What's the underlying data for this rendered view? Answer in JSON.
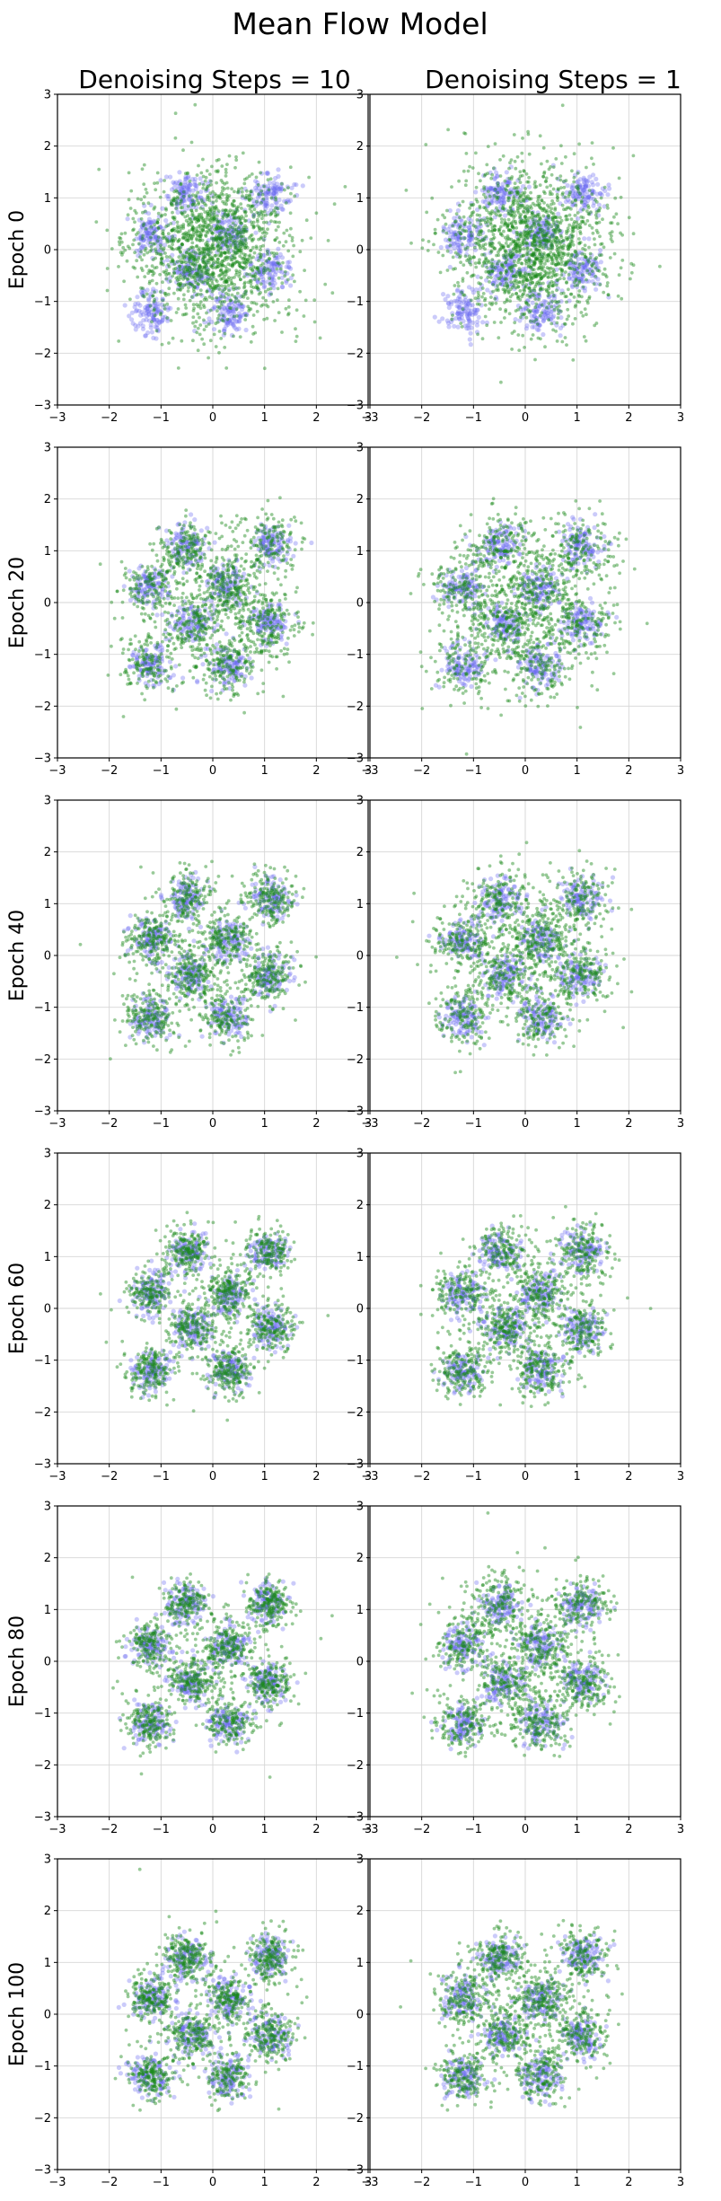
{
  "title": "Mean Flow Model",
  "columns": [
    "Denoising Steps = 10",
    "Denoising Steps = 1"
  ],
  "rows": [
    "Epoch 0",
    "Epoch 20",
    "Epoch 40",
    "Epoch 60",
    "Epoch 80",
    "Epoch 100"
  ],
  "colors": {
    "reference": "#6b6bf0",
    "generated": "#1a8a1a"
  },
  "chart_data": {
    "type": "scatter",
    "layout": "grid 6 rows x 2 columns",
    "xlim": [
      -3,
      3
    ],
    "ylim": [
      -3,
      3
    ],
    "xticks": [
      -3,
      -2,
      -1,
      0,
      1,
      2,
      3
    ],
    "yticks": [
      -3,
      -2,
      -1,
      0,
      1,
      2,
      3
    ],
    "xtick_labels": [
      "−3",
      "−2",
      "−1",
      "0",
      "1",
      "2",
      "3"
    ],
    "ytick_labels": [
      "−3",
      "−2",
      "−1",
      "0",
      "1",
      "2",
      "3"
    ],
    "grid": true,
    "reference_clusters": [
      [
        -1.2,
        0.3
      ],
      [
        -0.5,
        1.1
      ],
      [
        1.1,
        1.1
      ],
      [
        -0.4,
        -0.4
      ],
      [
        0.3,
        0.3
      ],
      [
        1.1,
        -0.4
      ],
      [
        -1.2,
        -1.2
      ],
      [
        0.3,
        -1.2
      ]
    ],
    "reference_spread": 0.2,
    "panels": [
      {
        "row": "Epoch 0",
        "column": "Denoising Steps = 10",
        "generated": {
          "kind": "gaussian",
          "center": [
            0,
            0
          ],
          "std": 0.75
        }
      },
      {
        "row": "Epoch 0",
        "column": "Denoising Steps = 1",
        "generated": {
          "kind": "gaussian",
          "center": [
            0.1,
            0.1
          ],
          "std": 0.75
        }
      },
      {
        "row": "Epoch 20",
        "column": "Denoising Steps = 10",
        "generated": {
          "kind": "clusters",
          "cluster_std": 0.3,
          "background_share": 0.2
        }
      },
      {
        "row": "Epoch 20",
        "column": "Denoising Steps = 1",
        "generated": {
          "kind": "clusters",
          "cluster_std": 0.34,
          "background_share": 0.3
        }
      },
      {
        "row": "Epoch 40",
        "column": "Denoising Steps = 10",
        "generated": {
          "kind": "clusters",
          "cluster_std": 0.25,
          "background_share": 0.1
        }
      },
      {
        "row": "Epoch 40",
        "column": "Denoising Steps = 1",
        "generated": {
          "kind": "clusters",
          "cluster_std": 0.3,
          "background_share": 0.2
        }
      },
      {
        "row": "Epoch 60",
        "column": "Denoising Steps = 10",
        "generated": {
          "kind": "clusters",
          "cluster_std": 0.23,
          "background_share": 0.08
        }
      },
      {
        "row": "Epoch 60",
        "column": "Denoising Steps = 1",
        "generated": {
          "kind": "clusters",
          "cluster_std": 0.27,
          "background_share": 0.15
        }
      },
      {
        "row": "Epoch 80",
        "column": "Denoising Steps = 10",
        "generated": {
          "kind": "clusters",
          "cluster_std": 0.23,
          "background_share": 0.08
        }
      },
      {
        "row": "Epoch 80",
        "column": "Denoising Steps = 1",
        "generated": {
          "kind": "clusters",
          "cluster_std": 0.28,
          "background_share": 0.18
        }
      },
      {
        "row": "Epoch 100",
        "column": "Denoising Steps = 10",
        "generated": {
          "kind": "clusters",
          "cluster_std": 0.23,
          "background_share": 0.08
        }
      },
      {
        "row": "Epoch 100",
        "column": "Denoising Steps = 1",
        "generated": {
          "kind": "clusters",
          "cluster_std": 0.26,
          "background_share": 0.14
        }
      }
    ]
  }
}
